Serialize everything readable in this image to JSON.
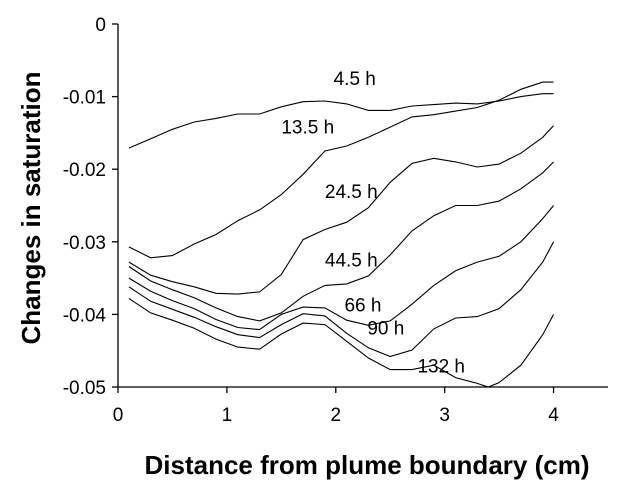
{
  "chart_data": {
    "type": "line",
    "xlabel": "Distance from plume boundary (cm)",
    "ylabel": "Changes in saturation",
    "xlim": [
      0,
      4.5
    ],
    "ylim": [
      -0.05,
      0
    ],
    "x_ticks": [
      "0",
      "1",
      "2",
      "3",
      "4"
    ],
    "y_ticks": [
      "0",
      "-0.01",
      "-0.02",
      "-0.03",
      "-0.04",
      "-0.05"
    ],
    "grid": false,
    "series": [
      {
        "name": "4.5 h",
        "x": [
          0.1,
          0.3,
          0.5,
          0.7,
          0.9,
          1.1,
          1.3,
          1.5,
          1.7,
          1.9,
          2.1,
          2.3,
          2.5,
          2.7,
          2.9,
          3.1,
          3.3,
          3.5,
          3.7,
          3.9,
          4.0
        ],
        "y": [
          -0.0171,
          -0.0158,
          -0.0145,
          -0.0135,
          -0.013,
          -0.0124,
          -0.0124,
          -0.0114,
          -0.0107,
          -0.0106,
          -0.011,
          -0.0119,
          -0.0119,
          -0.0113,
          -0.0111,
          -0.0109,
          -0.011,
          -0.0106,
          -0.01,
          -0.0096,
          -0.0096
        ]
      },
      {
        "name": "13.5 h",
        "x": [
          0.1,
          0.3,
          0.5,
          0.7,
          0.9,
          1.1,
          1.3,
          1.5,
          1.7,
          1.9,
          2.1,
          2.3,
          2.5,
          2.7,
          2.9,
          3.1,
          3.3,
          3.5,
          3.7,
          3.9,
          4.0
        ],
        "y": [
          -0.0307,
          -0.0322,
          -0.0319,
          -0.0303,
          -0.029,
          -0.0271,
          -0.0256,
          -0.0235,
          -0.0207,
          -0.0175,
          -0.0168,
          -0.0156,
          -0.0142,
          -0.0128,
          -0.0125,
          -0.012,
          -0.0115,
          -0.0105,
          -0.009,
          -0.008,
          -0.008
        ]
      },
      {
        "name": "24.5 h",
        "x": [
          0.1,
          0.3,
          0.5,
          0.7,
          0.9,
          1.1,
          1.3,
          1.5,
          1.7,
          1.9,
          2.1,
          2.3,
          2.5,
          2.7,
          2.9,
          3.1,
          3.3,
          3.5,
          3.7,
          3.9,
          4.0
        ],
        "y": [
          -0.0328,
          -0.0346,
          -0.0355,
          -0.0362,
          -0.0371,
          -0.0372,
          -0.0369,
          -0.0345,
          -0.0297,
          -0.0283,
          -0.0273,
          -0.0253,
          -0.0218,
          -0.0192,
          -0.0185,
          -0.019,
          -0.0197,
          -0.0193,
          -0.0178,
          -0.0156,
          -0.014
        ]
      },
      {
        "name": "44.5 h",
        "x": [
          0.1,
          0.3,
          0.5,
          0.7,
          0.9,
          1.1,
          1.3,
          1.5,
          1.7,
          1.9,
          2.1,
          2.3,
          2.5,
          2.7,
          2.9,
          3.1,
          3.3,
          3.5,
          3.7,
          3.9,
          4.0
        ],
        "y": [
          -0.0334,
          -0.0354,
          -0.0366,
          -0.0377,
          -0.0391,
          -0.0403,
          -0.0409,
          -0.0398,
          -0.0375,
          -0.036,
          -0.0358,
          -0.0347,
          -0.0318,
          -0.0285,
          -0.0264,
          -0.025,
          -0.025,
          -0.0244,
          -0.0227,
          -0.0205,
          -0.019
        ]
      },
      {
        "name": "66 h",
        "x": [
          0.1,
          0.3,
          0.5,
          0.7,
          0.9,
          1.1,
          1.3,
          1.5,
          1.7,
          1.9,
          2.1,
          2.3,
          2.5,
          2.7,
          2.9,
          3.1,
          3.3,
          3.5,
          3.7,
          3.9,
          4.0
        ],
        "y": [
          -0.035,
          -0.0368,
          -0.0381,
          -0.0392,
          -0.0407,
          -0.0418,
          -0.0421,
          -0.04,
          -0.039,
          -0.0391,
          -0.0408,
          -0.0415,
          -0.0409,
          -0.0386,
          -0.036,
          -0.034,
          -0.0328,
          -0.032,
          -0.03,
          -0.0268,
          -0.025
        ]
      },
      {
        "name": "90 h",
        "x": [
          0.1,
          0.3,
          0.5,
          0.7,
          0.9,
          1.1,
          1.3,
          1.5,
          1.7,
          1.9,
          2.1,
          2.3,
          2.5,
          2.7,
          2.9,
          3.1,
          3.3,
          3.5,
          3.7,
          3.9,
          4.0
        ],
        "y": [
          -0.0362,
          -0.0382,
          -0.0393,
          -0.0404,
          -0.0417,
          -0.0428,
          -0.0432,
          -0.0414,
          -0.0399,
          -0.0402,
          -0.0426,
          -0.0446,
          -0.0458,
          -0.0449,
          -0.042,
          -0.0405,
          -0.0403,
          -0.0392,
          -0.0366,
          -0.0328,
          -0.03
        ]
      },
      {
        "name": "132 h",
        "x": [
          0.1,
          0.3,
          0.5,
          0.7,
          0.9,
          1.1,
          1.3,
          1.5,
          1.7,
          1.9,
          2.1,
          2.3,
          2.5,
          2.7,
          2.9,
          3.1,
          3.3,
          3.4,
          3.5,
          3.7,
          3.9,
          4.0
        ],
        "y": [
          -0.0378,
          -0.0398,
          -0.0408,
          -0.0419,
          -0.0434,
          -0.0445,
          -0.0448,
          -0.0427,
          -0.0412,
          -0.0414,
          -0.0437,
          -0.046,
          -0.0476,
          -0.0476,
          -0.047,
          -0.0487,
          -0.0495,
          -0.05,
          -0.0494,
          -0.047,
          -0.0428,
          -0.04
        ]
      }
    ],
    "label_positions": [
      {
        "text": "4.5 h",
        "x": 1.98,
        "y": -0.0084
      },
      {
        "text": "13.5 h",
        "x": 1.5,
        "y": -0.0151
      },
      {
        "text": "24.5 h",
        "x": 1.9,
        "y": -0.024
      },
      {
        "text": "44.5 h",
        "x": 1.9,
        "y": -0.0334
      },
      {
        "text": "66 h",
        "x": 2.08,
        "y": -0.0396
      },
      {
        "text": "90 h",
        "x": 2.29,
        "y": -0.0428
      },
      {
        "text": "132 h",
        "x": 2.75,
        "y": -0.048
      }
    ]
  }
}
